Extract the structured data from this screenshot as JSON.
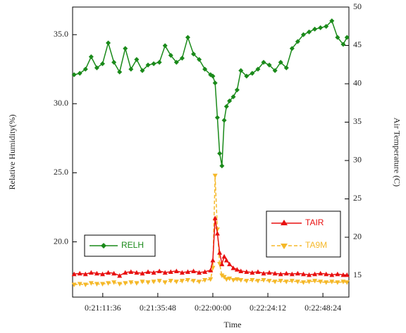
{
  "chart_data": {
    "type": "line",
    "x_label": "Time",
    "y_label": "Relative Humidity(%)",
    "y2_label": "Air Temperature (C)",
    "x": [
      75540,
      75690,
      75840,
      75990,
      76140,
      76290,
      76440,
      76590,
      76740,
      76890,
      77040,
      77190,
      77340,
      77490,
      77640,
      77790,
      77940,
      78090,
      78240,
      78390,
      78540,
      78690,
      78840,
      78990,
      79140,
      79200,
      79260,
      79320,
      79380,
      79440,
      79500,
      79560,
      79640,
      79740,
      79840,
      79940,
      80090,
      80240,
      80390,
      80540,
      80690,
      80840,
      80990,
      81140,
      81290,
      81440,
      81590,
      81740,
      81890,
      82040,
      82190,
      82340,
      82490,
      82640,
      82740
    ],
    "xlim": [
      75500,
      82790
    ],
    "xticks": [
      {
        "value": 76296,
        "label": "0:21:11:36"
      },
      {
        "value": 77748,
        "label": "0:21:35:48"
      },
      {
        "value": 79200,
        "label": "0:22:00:00"
      },
      {
        "value": 80652,
        "label": "0:22:24:12"
      },
      {
        "value": 82104,
        "label": "0:22:48:24"
      }
    ],
    "ylim": [
      16,
      37
    ],
    "yticks": [
      {
        "value": 20,
        "label": "20.0"
      },
      {
        "value": 25,
        "label": "25.0"
      },
      {
        "value": 30,
        "label": "30.0"
      },
      {
        "value": 35,
        "label": "35.0"
      }
    ],
    "y2lim": [
      12.2,
      50
    ],
    "y2ticks": [
      15,
      20,
      25,
      30,
      35,
      40,
      45,
      50
    ],
    "series": [
      {
        "name": "RELH",
        "color": "#1a8a1a",
        "marker": "diamond",
        "values": [
          32.1,
          32.2,
          32.5,
          33.4,
          32.6,
          32.9,
          34.4,
          33.0,
          32.3,
          34.0,
          32.5,
          33.2,
          32.4,
          32.8,
          32.9,
          33.0,
          34.2,
          33.5,
          33.0,
          33.3,
          34.8,
          33.6,
          33.2,
          32.5,
          32.1,
          32.0,
          31.5,
          29.0,
          26.4,
          25.5,
          28.8,
          29.8,
          30.2,
          30.5,
          31.0,
          32.4,
          32.0,
          32.2,
          32.5,
          33.0,
          32.8,
          32.4,
          33.0,
          32.6,
          34.0,
          34.5,
          35.0,
          35.2,
          35.4,
          35.5,
          35.6,
          36.0,
          34.8,
          34.3,
          34.8
        ]
      },
      {
        "name": "TAIR",
        "color": "#e81010",
        "marker": "triangle",
        "axis": "y2",
        "values": [
          15.2,
          15.3,
          15.2,
          15.4,
          15.3,
          15.2,
          15.4,
          15.3,
          15.0,
          15.4,
          15.5,
          15.4,
          15.3,
          15.5,
          15.4,
          15.6,
          15.4,
          15.5,
          15.6,
          15.4,
          15.5,
          15.6,
          15.4,
          15.5,
          15.7,
          17.0,
          22.5,
          20.5,
          18.0,
          16.5,
          17.5,
          17.0,
          16.5,
          16.0,
          15.8,
          15.6,
          15.5,
          15.4,
          15.5,
          15.3,
          15.4,
          15.3,
          15.2,
          15.3,
          15.2,
          15.3,
          15.2,
          15.1,
          15.2,
          15.3,
          15.2,
          15.1,
          15.2,
          15.1,
          15.1
        ]
      },
      {
        "name": "TA9M",
        "color": "#f5b828",
        "marker": "triangle-down",
        "axis": "y2",
        "dashed": true,
        "values": [
          13.8,
          13.9,
          13.8,
          14.0,
          13.9,
          13.9,
          14.0,
          14.1,
          13.9,
          14.0,
          14.1,
          14.0,
          14.2,
          14.1,
          14.2,
          14.3,
          14.1,
          14.3,
          14.2,
          14.3,
          14.4,
          14.3,
          14.2,
          14.4,
          14.5,
          16.0,
          28.0,
          21.0,
          16.5,
          15.0,
          14.8,
          14.5,
          14.6,
          14.4,
          14.5,
          14.4,
          14.3,
          14.4,
          14.3,
          14.4,
          14.3,
          14.2,
          14.3,
          14.2,
          14.3,
          14.2,
          14.1,
          14.2,
          14.3,
          14.2,
          14.1,
          14.2,
          14.1,
          14.2,
          14.1
        ]
      }
    ]
  }
}
